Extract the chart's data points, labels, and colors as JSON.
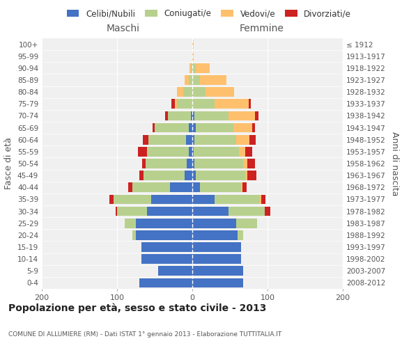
{
  "age_groups": [
    "0-4",
    "5-9",
    "10-14",
    "15-19",
    "20-24",
    "25-29",
    "30-34",
    "35-39",
    "40-44",
    "45-49",
    "50-54",
    "55-59",
    "60-64",
    "65-69",
    "70-74",
    "75-79",
    "80-84",
    "85-89",
    "90-94",
    "95-99",
    "100+"
  ],
  "birth_years": [
    "2008-2012",
    "2003-2007",
    "1998-2002",
    "1993-1997",
    "1988-1992",
    "1983-1987",
    "1978-1982",
    "1973-1977",
    "1968-1972",
    "1963-1967",
    "1958-1962",
    "1953-1957",
    "1948-1952",
    "1943-1947",
    "1938-1942",
    "1933-1937",
    "1928-1932",
    "1923-1927",
    "1918-1922",
    "1913-1917",
    "≤ 1912"
  ],
  "males": {
    "celibi": [
      70,
      45,
      68,
      68,
      75,
      75,
      60,
      55,
      30,
      10,
      7,
      5,
      8,
      5,
      2,
      0,
      0,
      0,
      0,
      0,
      0
    ],
    "coniugati": [
      0,
      0,
      0,
      0,
      5,
      15,
      40,
      50,
      50,
      55,
      55,
      55,
      50,
      45,
      30,
      20,
      12,
      5,
      2,
      0,
      0
    ],
    "vedovi": [
      0,
      0,
      0,
      0,
      0,
      0,
      0,
      0,
      0,
      0,
      0,
      0,
      0,
      0,
      0,
      3,
      8,
      5,
      2,
      0,
      0
    ],
    "divorziati": [
      0,
      0,
      0,
      0,
      0,
      0,
      2,
      5,
      5,
      5,
      5,
      12,
      8,
      3,
      4,
      5,
      0,
      0,
      0,
      0,
      0
    ]
  },
  "females": {
    "nubili": [
      68,
      68,
      65,
      65,
      60,
      58,
      48,
      30,
      10,
      5,
      3,
      2,
      3,
      5,
      3,
      0,
      0,
      0,
      0,
      0,
      0
    ],
    "coniugate": [
      0,
      0,
      0,
      0,
      8,
      28,
      48,
      60,
      55,
      65,
      65,
      60,
      55,
      50,
      45,
      30,
      18,
      10,
      5,
      0,
      0
    ],
    "vedove": [
      0,
      0,
      0,
      0,
      0,
      0,
      0,
      2,
      2,
      3,
      5,
      8,
      18,
      25,
      35,
      45,
      38,
      35,
      18,
      2,
      2
    ],
    "divorziate": [
      0,
      0,
      0,
      0,
      0,
      0,
      8,
      5,
      5,
      12,
      10,
      10,
      8,
      3,
      5,
      3,
      0,
      0,
      0,
      0,
      0
    ]
  },
  "colors": {
    "celibi_nubili": "#4472c4",
    "coniugati": "#b8d08e",
    "vedovi": "#ffc06e",
    "divorziati": "#cc2222"
  },
  "xlim": [
    -200,
    200
  ],
  "xticks": [
    -200,
    -100,
    0,
    100,
    200
  ],
  "xticklabels": [
    "200",
    "100",
    "0",
    "100",
    "200"
  ],
  "title": "Popolazione per età, sesso e stato civile - 2013",
  "subtitle": "COMUNE DI ALLUMIERE (RM) - Dati ISTAT 1° gennaio 2013 - Elaborazione TUTTITALIA.IT",
  "ylabel_left": "Fasce di età",
  "ylabel_right": "Anni di nascita",
  "legend_labels": [
    "Celibi/Nubili",
    "Coniugati/e",
    "Vedovi/e",
    "Divorziati/e"
  ],
  "maschi_label": "Maschi",
  "femmine_label": "Femmine",
  "background_color": "#ffffff",
  "plot_bg_color": "#f0f0f0"
}
